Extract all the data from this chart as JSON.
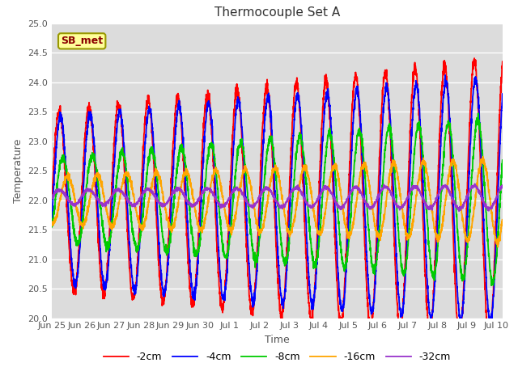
{
  "title": "Thermocouple Set A",
  "xlabel": "Time",
  "ylabel": "Temperature",
  "xlim_start": 0,
  "xlim_end": 15.2,
  "ylim": [
    20.0,
    25.0
  ],
  "yticks": [
    20.0,
    20.5,
    21.0,
    21.5,
    22.0,
    22.5,
    23.0,
    23.5,
    24.0,
    24.5,
    25.0
  ],
  "xtick_labels": [
    "Jun 25",
    "Jun 26",
    "Jun 27",
    "Jun 28",
    "Jun 29",
    "Jun 30",
    "Jul 1",
    "Jul 2",
    "Jul 3",
    "Jul 4",
    "Jul 5",
    "Jul 6",
    "Jul 7",
    "Jul 8",
    "Jul 9",
    "Jul 10"
  ],
  "xtick_positions": [
    0,
    1,
    2,
    3,
    4,
    5,
    6,
    7,
    8,
    9,
    10,
    11,
    12,
    13,
    14,
    15
  ],
  "series": [
    {
      "label": "-2cm",
      "color": "#FF0000",
      "amp_start": 1.5,
      "amp_end": 2.4,
      "mean": 22.0,
      "phase": 0.0,
      "noise": 0.05
    },
    {
      "label": "-4cm",
      "color": "#0000FF",
      "amp_start": 1.4,
      "amp_end": 2.1,
      "mean": 22.0,
      "phase": 0.04,
      "noise": 0.04
    },
    {
      "label": "-8cm",
      "color": "#00CC00",
      "amp_start": 0.7,
      "amp_end": 1.4,
      "mean": 22.0,
      "phase": 0.12,
      "noise": 0.04
    },
    {
      "label": "-16cm",
      "color": "#FFA500",
      "amp_start": 0.4,
      "amp_end": 0.7,
      "mean": 22.0,
      "phase": 0.28,
      "noise": 0.03
    },
    {
      "label": "-32cm",
      "color": "#9933CC",
      "amp_start": 0.12,
      "amp_end": 0.2,
      "mean": 22.05,
      "phase": 0.0,
      "noise": 0.015
    }
  ],
  "annotation_text": "SB_met",
  "bg_color": "#DCDCDC",
  "grid_color": "#FFFFFF",
  "linewidth": 1.3,
  "title_fontsize": 11,
  "label_fontsize": 9,
  "tick_fontsize": 8,
  "legend_fontsize": 9
}
